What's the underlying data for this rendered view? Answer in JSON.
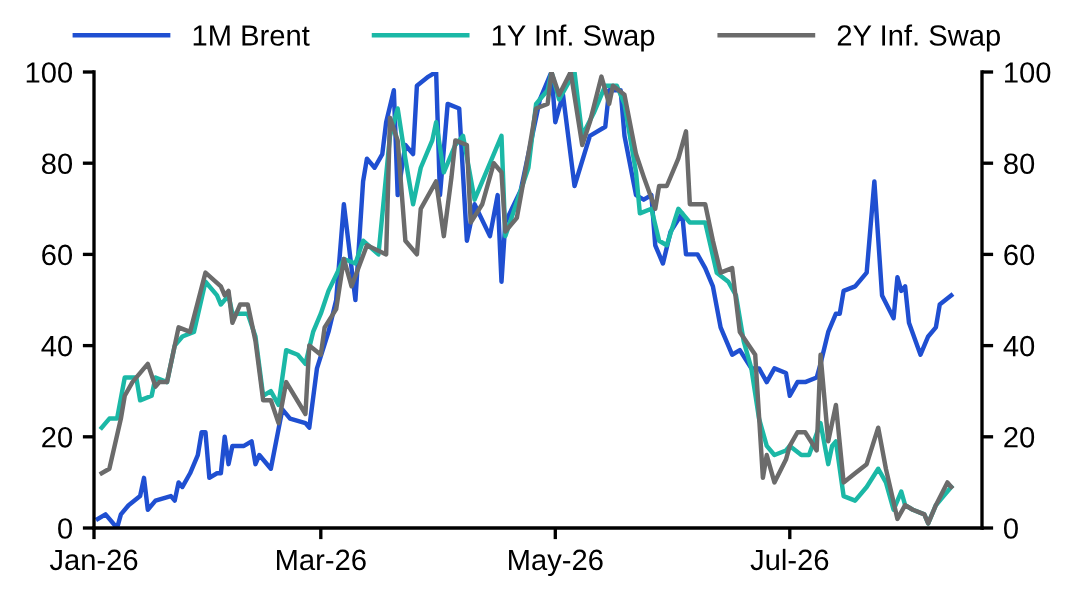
{
  "chart_data": {
    "type": "line",
    "xlim": [
      "2026-01-01",
      "2026-08-20"
    ],
    "xticks": [
      {
        "value": "2026-01-01",
        "label": "Jan-26"
      },
      {
        "value": "2026-03-01",
        "label": "Mar-26"
      },
      {
        "value": "2026-05-01",
        "label": "May-26"
      },
      {
        "value": "2026-07-01",
        "label": "Jul-26"
      }
    ],
    "ylim": [
      0,
      100
    ],
    "yticks": [
      0,
      20,
      40,
      60,
      80,
      100
    ],
    "y2lim": [
      0,
      100
    ],
    "y2ticks": [
      0,
      20,
      40,
      60,
      80,
      100
    ],
    "grid": false,
    "legend": "top",
    "marker": "none",
    "line_style": "solid",
    "series": [
      {
        "name": "1M Brent",
        "color": "#1f4fd1",
        "x": [
          "2026-01-02",
          "2026-01-04",
          "2026-01-07",
          "2026-01-08",
          "2026-01-10",
          "2026-01-13",
          "2026-01-14",
          "2026-01-15",
          "2026-01-17",
          "2026-01-21",
          "2026-01-22",
          "2026-01-23",
          "2026-01-24",
          "2026-01-26",
          "2026-01-28",
          "2026-01-29",
          "2026-01-30",
          "2026-01-31",
          "2026-02-02",
          "2026-02-03",
          "2026-02-04",
          "2026-02-05",
          "2026-02-06",
          "2026-02-09",
          "2026-02-11",
          "2026-02-12",
          "2026-02-13",
          "2026-02-16",
          "2026-02-19",
          "2026-02-21",
          "2026-02-25",
          "2026-02-26",
          "2026-02-28",
          "2026-03-03",
          "2026-03-05",
          "2026-03-07",
          "2026-03-10",
          "2026-03-12",
          "2026-03-13",
          "2026-03-15",
          "2026-03-17",
          "2026-03-18",
          "2026-03-20",
          "2026-03-21",
          "2026-03-23",
          "2026-03-25",
          "2026-03-26",
          "2026-03-29",
          "2026-03-31",
          "2026-04-01",
          "2026-04-03",
          "2026-04-06",
          "2026-04-08",
          "2026-04-10",
          "2026-04-14",
          "2026-04-16",
          "2026-04-17",
          "2026-04-18",
          "2026-04-22",
          "2026-04-25",
          "2026-04-27",
          "2026-04-30",
          "2026-05-01",
          "2026-05-03",
          "2026-05-06",
          "2026-05-10",
          "2026-05-14",
          "2026-05-15",
          "2026-05-18",
          "2026-05-19",
          "2026-05-22",
          "2026-05-24",
          "2026-05-26",
          "2026-05-27",
          "2026-05-29",
          "2026-05-31",
          "2026-06-03",
          "2026-06-04",
          "2026-06-07",
          "2026-06-09",
          "2026-06-11",
          "2026-06-13",
          "2026-06-16",
          "2026-06-18",
          "2026-06-21",
          "2026-06-23",
          "2026-06-25",
          "2026-06-27",
          "2026-06-30",
          "2026-07-01",
          "2026-07-03",
          "2026-07-05",
          "2026-07-08",
          "2026-07-09",
          "2026-07-11",
          "2026-07-13",
          "2026-07-14",
          "2026-07-15",
          "2026-07-18",
          "2026-07-21",
          "2026-07-23",
          "2026-07-25",
          "2026-07-28",
          "2026-07-29",
          "2026-07-30",
          "2026-07-31",
          "2026-08-01",
          "2026-08-04",
          "2026-08-06",
          "2026-08-08",
          "2026-08-09",
          "2026-08-12"
        ],
        "values": [
          2,
          3,
          0,
          3,
          5,
          7,
          11,
          4,
          6,
          7,
          6,
          10,
          9,
          12,
          16,
          21,
          21,
          11,
          12,
          12,
          20,
          14,
          18,
          18,
          19,
          14,
          16,
          13,
          26,
          24,
          23,
          22,
          35,
          43,
          50,
          71,
          50,
          76,
          81,
          79,
          82,
          89,
          96,
          73,
          84,
          82,
          97,
          99,
          100,
          73,
          93,
          92,
          63,
          71,
          64,
          73,
          54,
          67,
          74,
          86,
          94,
          100,
          89,
          95,
          75,
          86,
          88,
          96,
          96,
          86,
          73,
          72,
          73,
          62,
          58,
          65,
          69,
          60,
          60,
          57,
          53,
          44,
          38,
          39,
          35,
          35,
          32,
          35,
          34,
          29,
          32,
          32,
          33,
          36,
          43,
          47,
          47,
          52,
          53,
          56,
          76,
          51,
          46,
          55,
          52,
          53,
          45,
          38,
          42,
          44,
          49,
          51
        ]
      },
      {
        "name": "1Y Inf. Swap",
        "color": "#1bb8a6",
        "x": [
          "2026-01-03",
          "2026-01-05",
          "2026-01-07",
          "2026-01-09",
          "2026-01-12",
          "2026-01-13",
          "2026-01-16",
          "2026-01-17",
          "2026-01-20",
          "2026-01-22",
          "2026-01-24",
          "2026-01-27",
          "2026-01-30",
          "2026-02-02",
          "2026-02-03",
          "2026-02-05",
          "2026-02-06",
          "2026-02-10",
          "2026-02-12",
          "2026-02-14",
          "2026-02-16",
          "2026-02-18",
          "2026-02-20",
          "2026-02-23",
          "2026-02-25",
          "2026-02-27",
          "2026-03-01",
          "2026-03-03",
          "2026-03-07",
          "2026-03-10",
          "2026-03-12",
          "2026-03-16",
          "2026-03-19",
          "2026-03-21",
          "2026-03-23",
          "2026-03-25",
          "2026-03-27",
          "2026-03-30",
          "2026-03-31",
          "2026-04-02",
          "2026-04-05",
          "2026-04-07",
          "2026-04-10",
          "2026-04-13",
          "2026-04-15",
          "2026-04-17",
          "2026-04-18",
          "2026-04-20",
          "2026-04-24",
          "2026-04-26",
          "2026-04-29",
          "2026-04-30",
          "2026-05-02",
          "2026-05-06",
          "2026-05-08",
          "2026-05-11",
          "2026-05-14",
          "2026-05-17",
          "2026-05-19",
          "2026-05-22",
          "2026-05-23",
          "2026-05-26",
          "2026-05-28",
          "2026-05-30",
          "2026-06-02",
          "2026-06-05",
          "2026-06-09",
          "2026-06-12",
          "2026-06-15",
          "2026-06-17",
          "2026-06-19",
          "2026-06-21",
          "2026-06-23",
          "2026-06-25",
          "2026-06-27",
          "2026-06-30",
          "2026-07-01",
          "2026-07-04",
          "2026-07-06",
          "2026-07-09",
          "2026-07-11",
          "2026-07-12",
          "2026-07-13",
          "2026-07-15",
          "2026-07-18",
          "2026-07-21",
          "2026-07-24",
          "2026-07-26",
          "2026-07-28",
          "2026-07-30",
          "2026-07-31",
          "2026-08-02",
          "2026-08-05",
          "2026-08-06",
          "2026-08-08",
          "2026-08-10",
          "2026-08-12"
        ],
        "values": [
          22,
          24,
          24,
          33,
          33,
          28,
          29,
          33,
          32,
          40,
          42,
          43,
          54,
          51,
          49,
          51,
          47,
          47,
          42,
          29,
          30,
          27,
          39,
          38,
          36,
          43,
          47,
          52,
          59,
          58,
          63,
          60,
          86,
          92,
          81,
          71,
          79,
          85,
          89,
          78,
          84,
          86,
          72,
          78,
          82,
          86,
          64,
          69,
          79,
          93,
          96,
          100,
          94,
          100,
          86,
          91,
          97,
          97,
          93,
          78,
          69,
          70,
          63,
          62,
          70,
          67,
          67,
          56,
          54,
          51,
          41,
          35,
          24,
          18,
          16,
          17,
          18,
          16,
          16,
          23,
          14,
          18,
          19,
          7,
          6,
          9,
          13,
          10,
          4,
          8,
          5,
          4,
          3,
          1,
          5,
          7,
          9
        ]
      },
      {
        "name": "2Y Inf. Swap",
        "color": "#6b6b6b",
        "x": [
          "2026-01-03",
          "2026-01-05",
          "2026-01-08",
          "2026-01-09",
          "2026-01-11",
          "2026-01-14",
          "2026-01-15",
          "2026-01-17",
          "2026-01-18",
          "2026-01-20",
          "2026-01-23",
          "2026-01-26",
          "2026-01-30",
          "2026-02-03",
          "2026-02-04",
          "2026-02-05",
          "2026-02-06",
          "2026-02-08",
          "2026-02-10",
          "2026-02-12",
          "2026-02-14",
          "2026-02-16",
          "2026-02-18",
          "2026-02-20",
          "2026-02-25",
          "2026-02-26",
          "2026-03-01",
          "2026-03-02",
          "2026-03-05",
          "2026-03-07",
          "2026-03-09",
          "2026-03-13",
          "2026-03-18",
          "2026-03-19",
          "2026-03-21",
          "2026-03-23",
          "2026-03-26",
          "2026-03-27",
          "2026-03-31",
          "2026-04-02",
          "2026-04-04",
          "2026-04-05",
          "2026-04-08",
          "2026-04-09",
          "2026-04-12",
          "2026-04-15",
          "2026-04-17",
          "2026-04-18",
          "2026-04-21",
          "2026-04-24",
          "2026-04-26",
          "2026-04-29",
          "2026-04-30",
          "2026-05-02",
          "2026-05-05",
          "2026-05-08",
          "2026-05-10",
          "2026-05-13",
          "2026-05-15",
          "2026-05-16",
          "2026-05-19",
          "2026-05-22",
          "2026-05-24",
          "2026-05-27",
          "2026-05-28",
          "2026-05-30",
          "2026-06-02",
          "2026-06-04",
          "2026-06-05",
          "2026-06-09",
          "2026-06-11",
          "2026-06-13",
          "2026-06-16",
          "2026-06-18",
          "2026-06-22",
          "2026-06-24",
          "2026-06-25",
          "2026-06-27",
          "2026-06-30",
          "2026-07-01",
          "2026-07-03",
          "2026-07-05",
          "2026-07-08",
          "2026-07-09",
          "2026-07-11",
          "2026-07-13",
          "2026-07-15",
          "2026-07-18",
          "2026-07-21",
          "2026-07-24",
          "2026-07-26",
          "2026-07-29",
          "2026-07-31",
          "2026-08-02",
          "2026-08-05",
          "2026-08-06",
          "2026-08-08",
          "2026-08-11",
          "2026-08-12"
        ],
        "values": [
          12,
          13,
          24,
          29,
          32,
          35,
          36,
          31,
          32,
          32,
          44,
          43,
          56,
          53,
          51,
          52,
          45,
          49,
          49,
          41,
          28,
          28,
          23,
          32,
          25,
          40,
          38,
          44,
          48,
          59,
          53,
          62,
          60,
          90,
          85,
          63,
          60,
          70,
          76,
          64,
          77,
          85,
          84,
          67,
          71,
          80,
          78,
          65,
          68,
          82,
          92,
          93,
          100,
          95,
          100,
          84,
          89,
          99,
          93,
          97,
          95,
          82,
          77,
          70,
          75,
          75,
          81,
          87,
          71,
          71,
          63,
          56,
          57,
          43,
          38,
          11,
          16,
          10,
          15,
          18,
          21,
          21,
          17,
          38,
          19,
          27,
          10,
          12,
          14,
          22,
          13,
          2,
          5,
          4,
          3,
          1,
          5,
          10,
          9
        ]
      }
    ]
  }
}
